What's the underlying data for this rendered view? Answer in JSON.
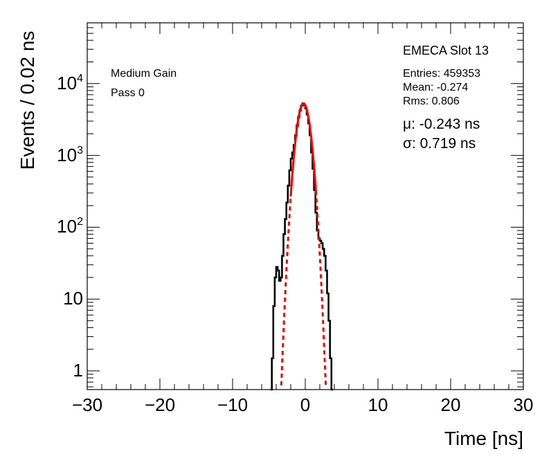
{
  "chart_data": {
    "type": "line",
    "title": "EMECA Slot 13",
    "xlabel": "Time [ns]",
    "ylabel": "Events / 0.02 ns",
    "x_range": [
      -30,
      30
    ],
    "y_scale": "log",
    "y_range": [
      0.55,
      70000
    ],
    "x_ticks": [
      "−30",
      "−20",
      "−10",
      "0",
      "10",
      "20",
      "30"
    ],
    "y_ticks": [
      {
        "value": 1,
        "label": "1"
      },
      {
        "value": 10,
        "label": "10"
      },
      {
        "value": 100,
        "label": "10",
        "exp": "2"
      },
      {
        "value": 1000,
        "label": "10",
        "exp": "3"
      },
      {
        "value": 10000,
        "label": "10",
        "exp": "4"
      }
    ],
    "grid": false,
    "annotations": {
      "gain": "Medium Gain",
      "pass": "Pass 0",
      "stats_title": "EMECA Slot 13",
      "entries": "Entries: 459353",
      "mean": "Mean: -0.274",
      "rms": "Rms: 0.806",
      "mu": "μ: -0.243 ns",
      "sigma": "σ: 0.719 ns"
    },
    "series": [
      {
        "style": "histogram",
        "color": "#000000",
        "points": [
          [
            -4.7,
            0.55
          ],
          [
            -4.5,
            1.5
          ],
          [
            -4.3,
            8
          ],
          [
            -4.1,
            20
          ],
          [
            -3.9,
            28
          ],
          [
            -3.7,
            25
          ],
          [
            -3.5,
            18
          ],
          [
            -3.3,
            20
          ],
          [
            -3.1,
            40
          ],
          [
            -2.9,
            80
          ],
          [
            -2.7,
            130
          ],
          [
            -2.5,
            220
          ],
          [
            -2.3,
            380
          ],
          [
            -2.1,
            620
          ],
          [
            -1.9,
            900
          ],
          [
            -1.7,
            1100
          ],
          [
            -1.5,
            1400
          ],
          [
            -1.3,
            1900
          ],
          [
            -1.1,
            2600
          ],
          [
            -0.9,
            3400
          ],
          [
            -0.7,
            4200
          ],
          [
            -0.5,
            4900
          ],
          [
            -0.3,
            5300
          ],
          [
            -0.1,
            5000
          ],
          [
            0.1,
            4500
          ],
          [
            0.3,
            3700
          ],
          [
            0.5,
            2800
          ],
          [
            0.7,
            1900
          ],
          [
            0.9,
            1100
          ],
          [
            1.1,
            650
          ],
          [
            1.3,
            330
          ],
          [
            1.5,
            160
          ],
          [
            1.7,
            90
          ],
          [
            1.9,
            70
          ],
          [
            2.1,
            65
          ],
          [
            2.3,
            60
          ],
          [
            2.5,
            50
          ],
          [
            2.7,
            40
          ],
          [
            2.9,
            25
          ],
          [
            3.1,
            12
          ],
          [
            3.3,
            5
          ],
          [
            3.5,
            1.5
          ],
          [
            3.7,
            0.55
          ]
        ]
      },
      {
        "style": "gaussian-fit",
        "color": "#ff0000",
        "amplitude": 5300,
        "mean": -0.243,
        "sigma": 0.719,
        "solid_range": [
          -2.0,
          1.5
        ],
        "dashed_range": [
          -3.3,
          3.0
        ]
      }
    ]
  }
}
